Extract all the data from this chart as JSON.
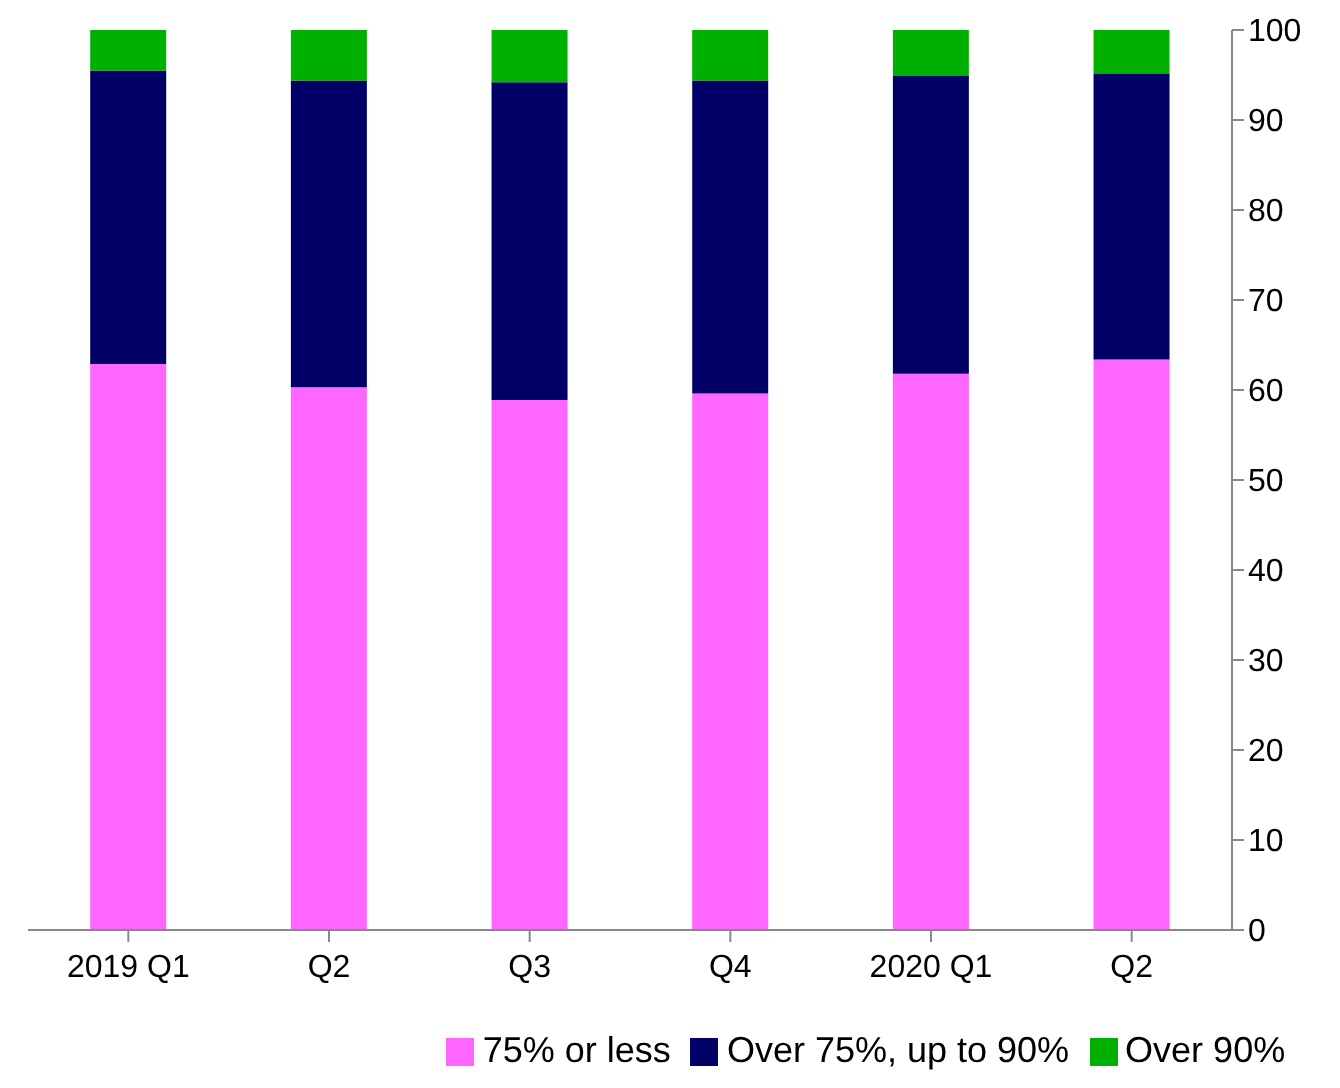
{
  "chart_data": {
    "type": "bar",
    "stacked": true,
    "categories": [
      "2019 Q1",
      "Q2",
      "Q3",
      "Q4",
      "2020 Q1",
      "Q2"
    ],
    "series": [
      {
        "name": "75% or less",
        "color": "#ff66ff",
        "values": [
          62.9,
          60.3,
          58.9,
          59.6,
          61.8,
          63.4
        ]
      },
      {
        "name": "Over 75%, up to 90%",
        "color": "#000066",
        "values": [
          32.6,
          34.1,
          35.3,
          34.8,
          33.1,
          31.7
        ]
      },
      {
        "name": "Over 90%",
        "color": "#00b000",
        "values": [
          4.5,
          5.6,
          5.8,
          5.6,
          5.1,
          4.9
        ]
      }
    ],
    "ylim": [
      0,
      100
    ],
    "yticks": [
      0,
      10,
      20,
      30,
      40,
      50,
      60,
      70,
      80,
      90,
      100
    ],
    "grid": false,
    "legend": "bottom"
  }
}
